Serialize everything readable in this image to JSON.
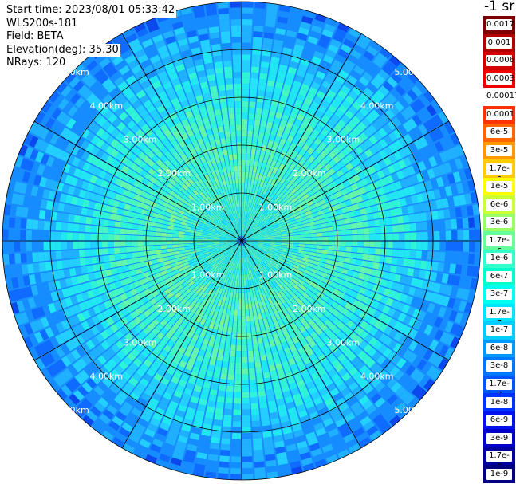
{
  "info": {
    "start_time": "Start time: 2023/08/01 05:33:42",
    "instrument": "WLS200s-181",
    "field": "Field: BETA",
    "elevation": "Elevation(deg): 35.30",
    "nrays": "NRays: 120"
  },
  "colorbar": {
    "title": "-1 sr",
    "segments": [
      {
        "label": "0.0017",
        "color": "#7f0000"
      },
      {
        "label": "0.001",
        "color": "#b20000"
      },
      {
        "label": "0.0006",
        "color": "#d40000"
      },
      {
        "label": "0.0003",
        "color": "#f00000"
      },
      {
        "label": "0.00017",
        "color": "#ffffff"
      },
      {
        "label": "0.0001",
        "color": "#ff3300"
      },
      {
        "label": "6e-5",
        "color": "#ff6600"
      },
      {
        "label": "3e-5",
        "color": "#ff9900"
      },
      {
        "label": "1.7e-5",
        "color": "#ffcc00"
      },
      {
        "label": "1e-5",
        "color": "#ffff00"
      },
      {
        "label": "6e-6",
        "color": "#ccff33"
      },
      {
        "label": "3e-6",
        "color": "#99ff66"
      },
      {
        "label": "1.7e-6",
        "color": "#66ff99"
      },
      {
        "label": "1e-6",
        "color": "#33ffcc"
      },
      {
        "label": "6e-7",
        "color": "#00ffcc"
      },
      {
        "label": "3e-7",
        "color": "#00ffee"
      },
      {
        "label": "1.7e-7",
        "color": "#00e5ff"
      },
      {
        "label": "1e-7",
        "color": "#00ccff"
      },
      {
        "label": "6e-8",
        "color": "#0099ff"
      },
      {
        "label": "3e-8",
        "color": "#0077ff"
      },
      {
        "label": "1.7e-8",
        "color": "#0055ff"
      },
      {
        "label": "1e-8",
        "color": "#0033ff"
      },
      {
        "label": "6e-9",
        "color": "#0011ee"
      },
      {
        "label": "3e-9",
        "color": "#0000cc"
      },
      {
        "label": "1.7e-9",
        "color": "#0000a0"
      },
      {
        "label": "1e-9",
        "color": "#000080"
      }
    ]
  },
  "chart_data": {
    "type": "heatmap",
    "projection": "polar (PPI scan)",
    "field": "BETA",
    "units": "-1 sr",
    "nrays": 120,
    "elevation_deg": 35.3,
    "range_max_km": 5.0,
    "range_rings_km": [
      1.0,
      2.0,
      3.0,
      4.0,
      5.0
    ],
    "range_ring_labels": [
      "1.00km",
      "2.00km",
      "3.00km",
      "4.00km",
      "5.00km"
    ],
    "radial_lines_every_deg": 30,
    "value_by_range": [
      {
        "range_km": 0.5,
        "value": "3e-7"
      },
      {
        "range_km": 1.5,
        "value": "6e-7"
      },
      {
        "range_km": 2.5,
        "value": "1.7e-7"
      },
      {
        "range_km": 3.5,
        "value": "6e-8"
      },
      {
        "range_km": 4.5,
        "value": "3e-8"
      }
    ],
    "color_scale": "logarithmic"
  }
}
